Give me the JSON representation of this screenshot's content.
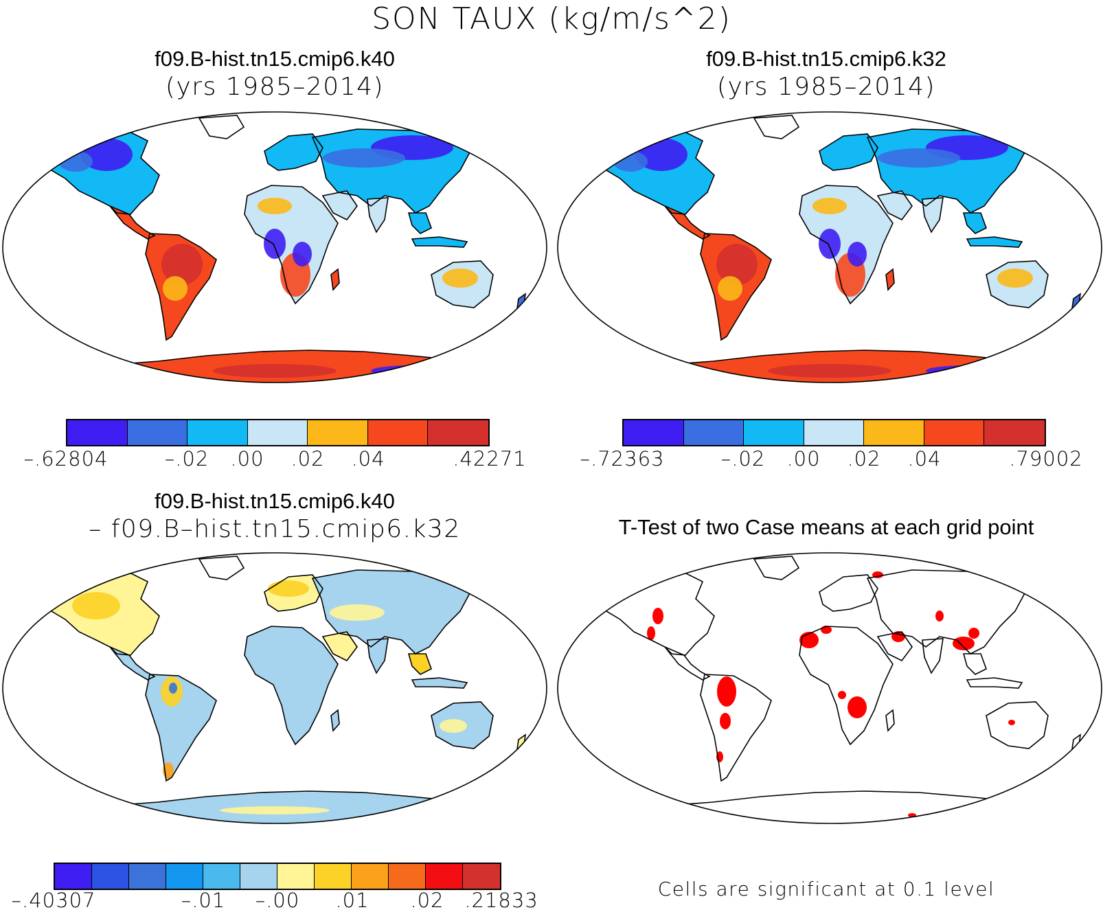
{
  "figure": {
    "title": "SON TAUX (kg/m/s^2)"
  },
  "panels": {
    "case1": {
      "title": "f09.B-hist.tn15.cmip6.k40",
      "subtitle": "(yrs 1985–2014)",
      "colorbar": {
        "colors": [
          "#3e1ef2",
          "#3a6fe2",
          "#12b9f5",
          "#c8e6f6",
          "#fbb818",
          "#f6481e",
          "#d4302d"
        ],
        "labels": [
          "–.62804",
          "–.02",
          ".00",
          ".02",
          ".04",
          ".42271"
        ]
      }
    },
    "case2": {
      "title": "f09.B-hist.tn15.cmip6.k32",
      "subtitle": "(yrs 1985–2014)",
      "colorbar": {
        "colors": [
          "#3e1ef2",
          "#3a6fe2",
          "#12b9f5",
          "#c8e6f6",
          "#fbb818",
          "#f6481e",
          "#d4302d"
        ],
        "labels": [
          "–.72363",
          "–.02",
          ".00",
          ".02",
          ".04",
          ".79002"
        ]
      }
    },
    "diff": {
      "title": "f09.B-hist.tn15.cmip6.k40",
      "subtitle": "– f09.B–hist.tn15.cmip6.k32",
      "colorbar": {
        "colors": [
          "#3e1ef2",
          "#2d53e4",
          "#3b73da",
          "#1397f0",
          "#49b9ee",
          "#a6d3ee",
          "#fff596",
          "#fcd226",
          "#fba11a",
          "#f66a1c",
          "#f20e12",
          "#d4302d"
        ],
        "labels": [
          "–.40307",
          "–.01",
          "–.00",
          ".01",
          ".02",
          ".21833"
        ]
      }
    },
    "ttest": {
      "title": "T-Test of two Case means at each grid point",
      "footnote": "Cells are significant at 0.1 level",
      "significant_color": "#ff0000"
    }
  }
}
